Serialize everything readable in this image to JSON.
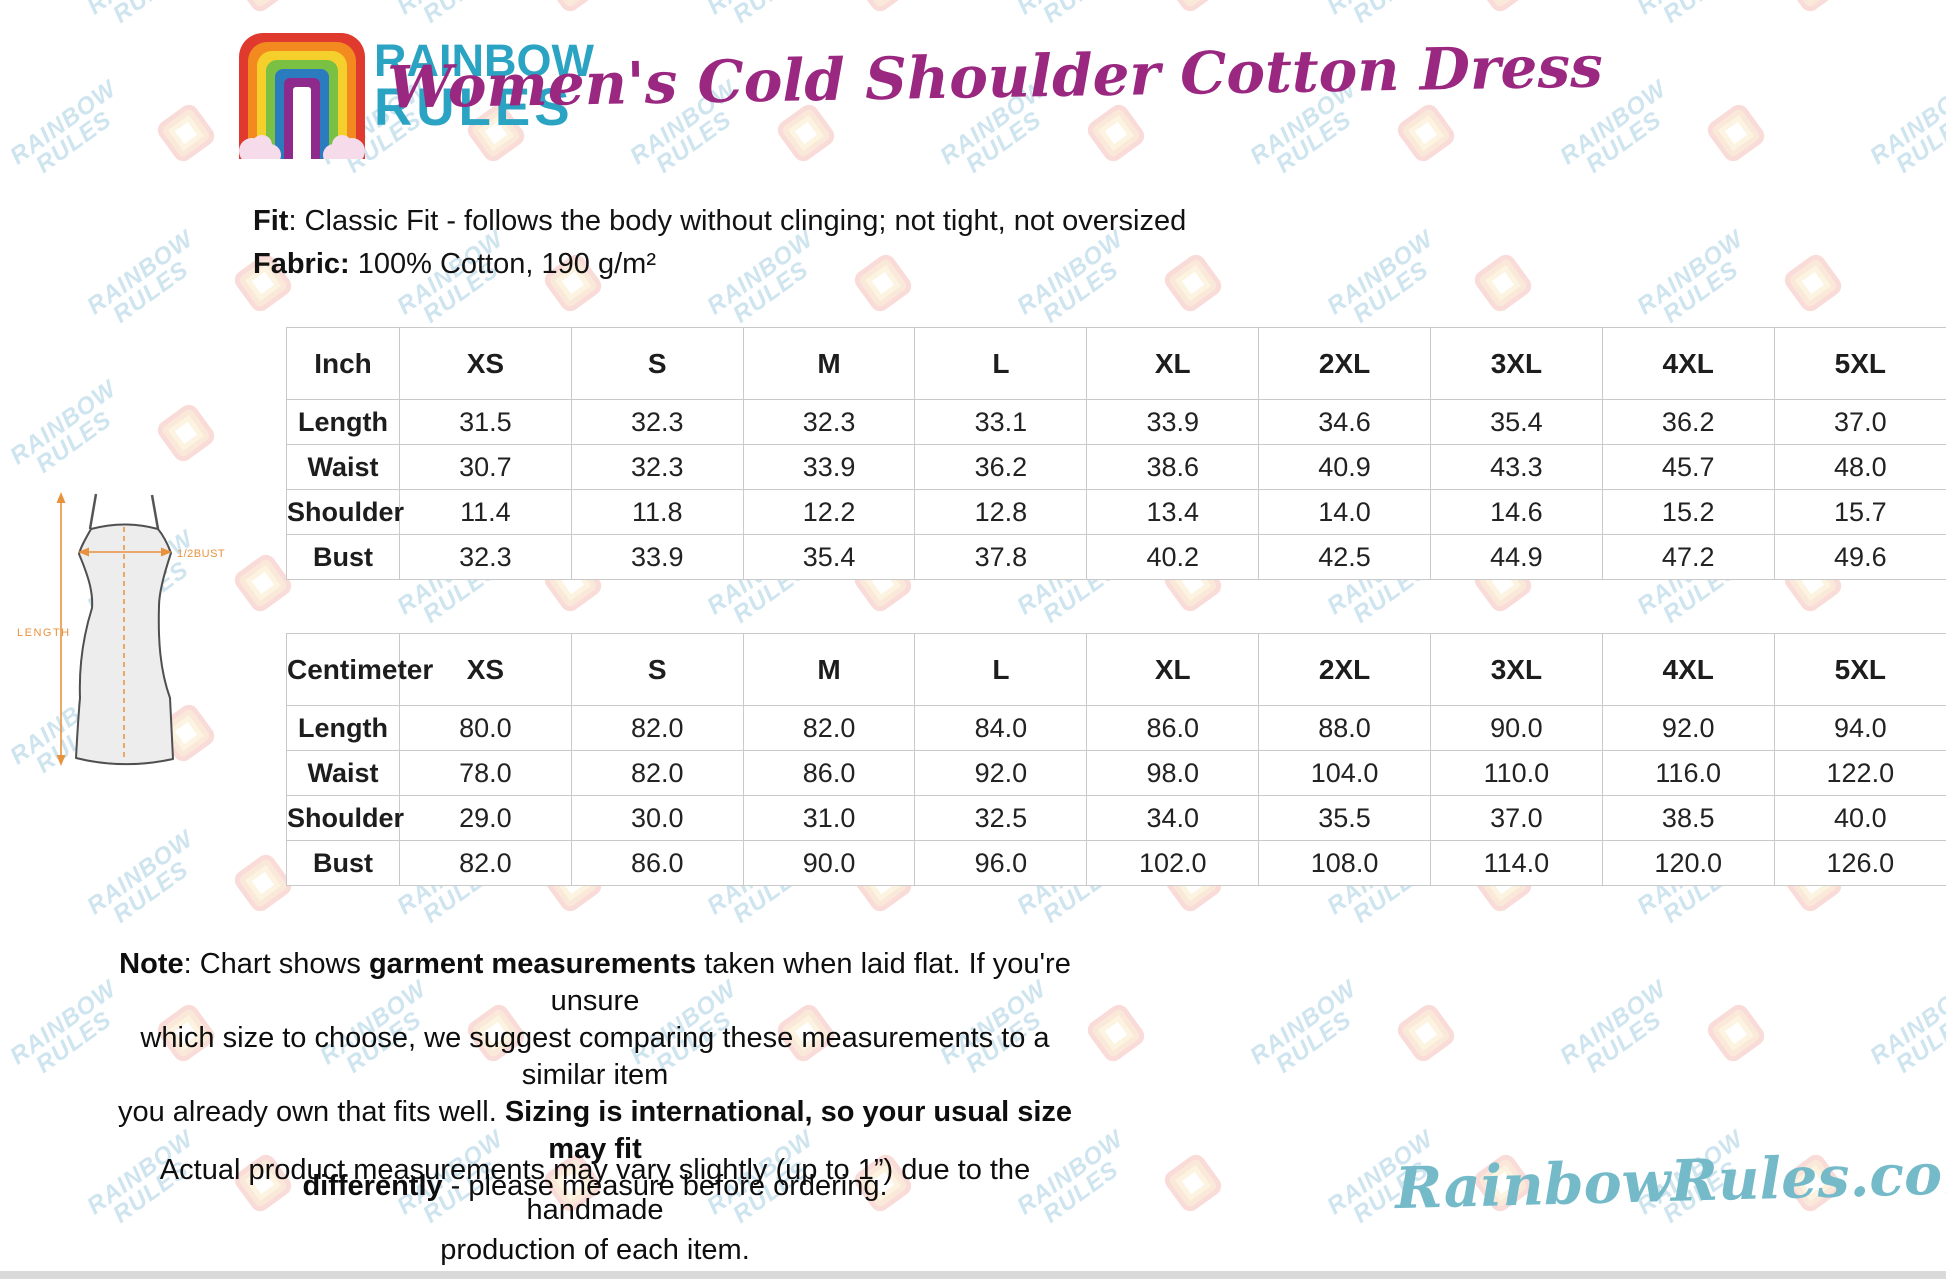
{
  "header": {
    "brand_line1": "RAINBOW",
    "brand_line2": "RULES",
    "title": "Women's Cold Shoulder Cotton Dress"
  },
  "description": {
    "lines": [
      [
        {
          "text": "Fit",
          "bold": true
        },
        {
          "text": ": Classic Fit - follows the body without clinging; not tight, not oversized"
        }
      ],
      [
        {
          "text": "Fabric:",
          "bold": true
        },
        {
          "text": " 100% Cotton, 190 g/m²"
        }
      ]
    ]
  },
  "diagram": {
    "length_label": "LENGTH",
    "bust_label": "1/2BUST"
  },
  "size_charts": [
    {
      "unit_header": "Inch",
      "columns": [
        "XS",
        "S",
        "M",
        "L",
        "XL",
        "2XL",
        "3XL",
        "4XL",
        "5XL"
      ],
      "rows": [
        {
          "label": "Length",
          "values": [
            "31.5",
            "32.3",
            "32.3",
            "33.1",
            "33.9",
            "34.6",
            "35.4",
            "36.2",
            "37.0"
          ]
        },
        {
          "label": "Waist",
          "values": [
            "30.7",
            "32.3",
            "33.9",
            "36.2",
            "38.6",
            "40.9",
            "43.3",
            "45.7",
            "48.0"
          ]
        },
        {
          "label": "Shoulder",
          "values": [
            "11.4",
            "11.8",
            "12.2",
            "12.8",
            "13.4",
            "14.0",
            "14.6",
            "15.2",
            "15.7"
          ]
        },
        {
          "label": "Bust",
          "values": [
            "32.3",
            "33.9",
            "35.4",
            "37.8",
            "40.2",
            "42.5",
            "44.9",
            "47.2",
            "49.6"
          ]
        }
      ]
    },
    {
      "unit_header": "Centimeter",
      "columns": [
        "XS",
        "S",
        "M",
        "L",
        "XL",
        "2XL",
        "3XL",
        "4XL",
        "5XL"
      ],
      "rows": [
        {
          "label": "Length",
          "values": [
            "80.0",
            "82.0",
            "82.0",
            "84.0",
            "86.0",
            "88.0",
            "90.0",
            "92.0",
            "94.0"
          ]
        },
        {
          "label": "Waist",
          "values": [
            "78.0",
            "82.0",
            "86.0",
            "92.0",
            "98.0",
            "104.0",
            "110.0",
            "116.0",
            "122.0"
          ]
        },
        {
          "label": "Shoulder",
          "values": [
            "29.0",
            "30.0",
            "31.0",
            "32.5",
            "34.0",
            "35.5",
            "37.0",
            "38.5",
            "40.0"
          ]
        },
        {
          "label": "Bust",
          "values": [
            "82.0",
            "86.0",
            "90.0",
            "96.0",
            "102.0",
            "108.0",
            "114.0",
            "120.0",
            "126.0"
          ]
        }
      ]
    }
  ],
  "notes": {
    "main_lines": [
      [
        {
          "text": "Note",
          "bold": true
        },
        {
          "text": ": Chart shows "
        },
        {
          "text": "garment measurements",
          "bold": true
        },
        {
          "text": " taken when laid flat. If you're unsure"
        }
      ],
      [
        {
          "text": "which size to choose, we suggest comparing these measurements to a similar item"
        }
      ],
      [
        {
          "text": "you already own that fits well. "
        },
        {
          "text": "Sizing is international, so your usual size may fit",
          "bold": true
        }
      ],
      [
        {
          "text": "differently",
          "bold": true
        },
        {
          "text": " - please measure before ordering."
        }
      ]
    ],
    "disclaimer_lines": [
      [
        {
          "text": "Actual product measurements may vary slightly (up to 1”) due to the handmade"
        }
      ],
      [
        {
          "text": "production of each item."
        }
      ]
    ]
  },
  "footer": {
    "site_logo": "RainbowRules.com"
  },
  "watermark": {
    "line1": "RAINBOW",
    "line2": "RULES"
  },
  "colors": {
    "title_purple": "#9a2780",
    "brand_teal": "#2ba4c3",
    "footer_teal": "#74bac9",
    "diagram_orange": "#e8923e",
    "table_border_gray": "#c9c9c9",
    "watermark_blue": "#aed3e4",
    "rainbow": [
      "#e03a2f",
      "#f28a20",
      "#f5d02c",
      "#7ac143",
      "#2b7bbf",
      "#8e2a8c"
    ]
  }
}
